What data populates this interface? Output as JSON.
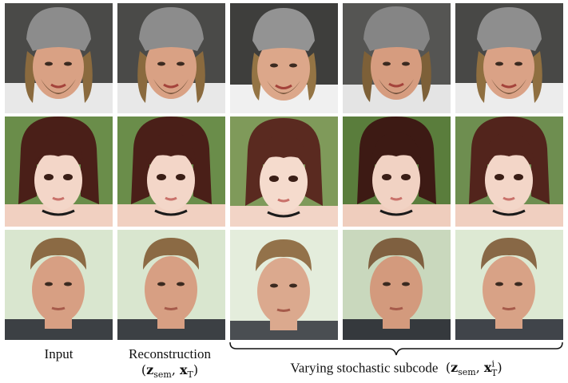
{
  "captions": {
    "input": "Input",
    "reconstruction": "Reconstruction",
    "reconstruction_math": {
      "open": "(",
      "z": "z",
      "z_sub": "sem",
      "comma": ", ",
      "x": "x",
      "x_sub": "T",
      "close": ")"
    },
    "varying": "Varying stochastic subcode",
    "varying_math": {
      "open": "(",
      "z": "z",
      "z_sub": "sem",
      "comma": ", ",
      "x": "x",
      "x_sub": "T",
      "x_sup": "i",
      "close": ")"
    }
  },
  "rows": [
    {
      "subject": "man-with-gray-beanie",
      "bg": "#4a4a48",
      "skin": "#d9a184",
      "hair": "#8a6a3e",
      "hat": "#8c8c8c",
      "shirt": "#e8e8e8"
    },
    {
      "subject": "woman-with-bangs",
      "bg": "#6a8d4a",
      "skin": "#f1d0c1",
      "hair": "#4a1f18",
      "hat": "none",
      "shirt": "#f1d0c1"
    },
    {
      "subject": "man-short-hair",
      "bg": "#d9e6cf",
      "skin": "#d79f83",
      "hair": "#8b6a44",
      "hat": "none",
      "shirt": "#3c4044"
    }
  ]
}
